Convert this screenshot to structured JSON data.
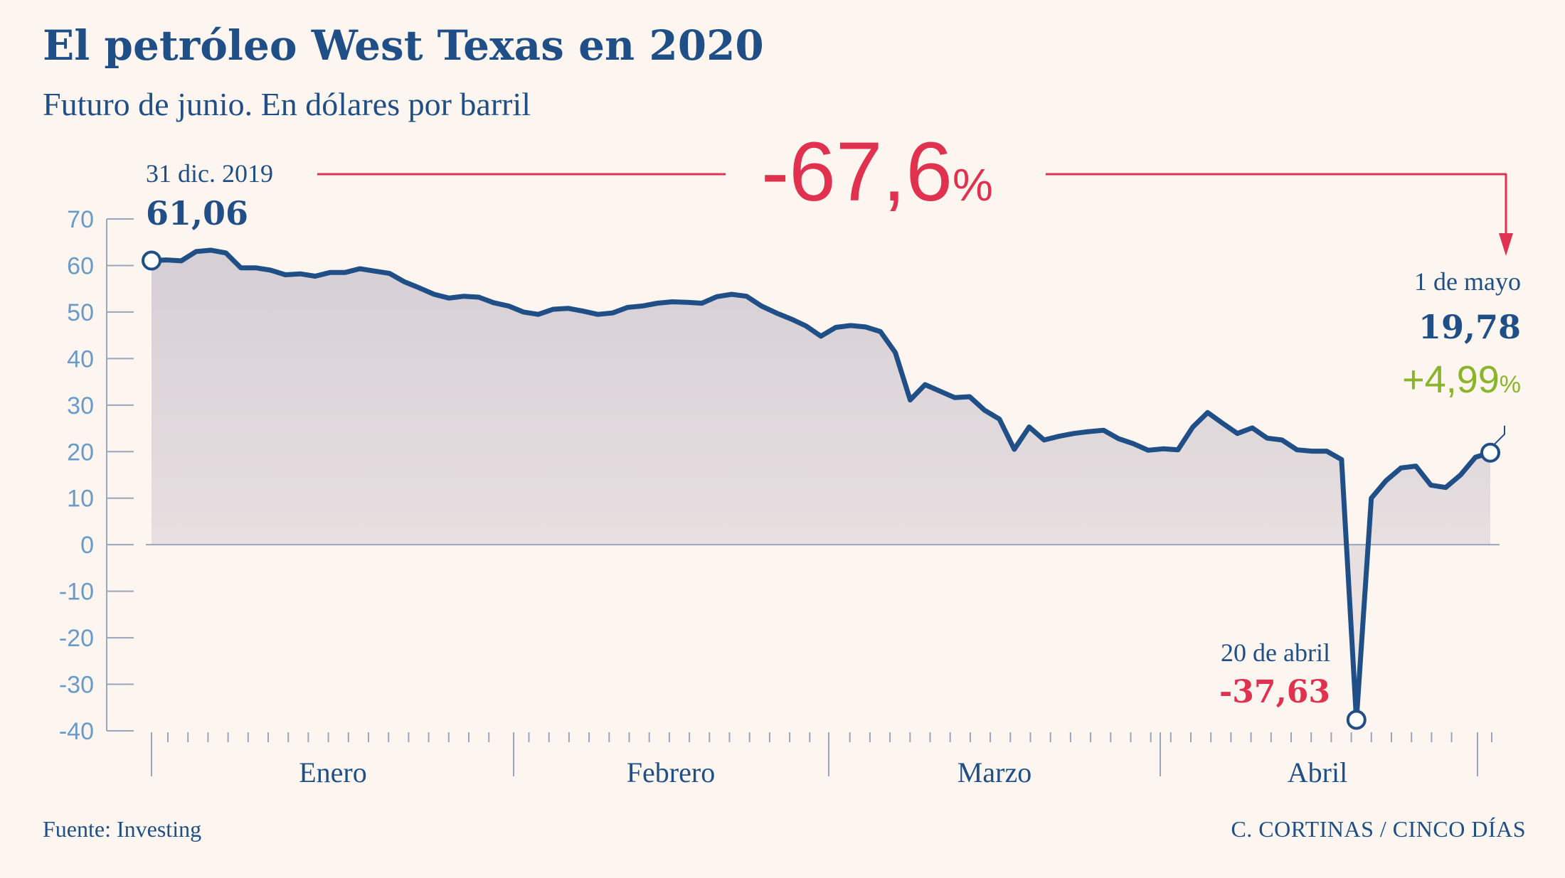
{
  "title": "El petróleo West Texas en 2020",
  "subtitle": "Futuro de junio. En dólares por barril",
  "source": "Fuente: Investing",
  "credit": "C. CORTINAS / CINCO DÍAS",
  "colors": {
    "line": "#1f4f86",
    "red": "#e0324f",
    "green": "#8ab42a",
    "axis": "#6a9ac8",
    "background": "#fdf5ef"
  },
  "annotations": {
    "start_date": "31 dic. 2019",
    "start_value": "61,06",
    "total_change": "-67,6",
    "total_change_unit": "%",
    "min_date": "20 de abril",
    "min_value": "-37,63",
    "end_date": "1 de mayo",
    "end_value": "19,78",
    "end_change": "+4,99",
    "end_change_unit": "%"
  },
  "chart_data": {
    "type": "area",
    "ylim": [
      -40,
      70
    ],
    "yticks": [
      "70",
      "60",
      "50",
      "40",
      "30",
      "20",
      "10",
      "0",
      "-10",
      "-20",
      "-30",
      "-40"
    ],
    "months": [
      "Enero",
      "Febrero",
      "Marzo",
      "Abril"
    ],
    "series": [
      {
        "values": [
          61.06,
          61.2,
          61.0,
          63.0,
          63.3,
          62.7,
          59.5,
          59.5,
          59.0,
          58.0,
          58.2,
          57.7,
          58.5,
          58.5,
          59.3,
          58.8,
          58.3,
          56.5,
          55.2,
          53.8,
          53.0,
          53.4,
          53.2,
          52.0,
          51.3,
          50.0,
          49.5,
          50.6,
          50.8,
          50.2,
          49.5,
          49.8,
          51.0,
          51.3,
          51.9,
          52.2,
          52.1,
          51.9,
          53.3,
          53.8,
          53.4,
          51.3,
          49.8,
          48.5,
          47.0,
          44.8,
          46.7,
          47.1,
          46.8,
          45.8,
          41.3,
          31.1,
          34.4,
          33.0,
          31.6,
          31.8,
          28.9,
          27.0,
          20.5,
          25.3,
          22.5,
          23.3,
          23.9,
          24.3,
          24.6,
          22.8,
          21.7,
          20.3,
          20.6,
          20.4,
          25.3,
          28.4,
          26.1,
          23.9,
          25.1,
          22.9,
          22.5,
          20.4,
          20.1,
          20.1,
          18.3,
          -37.63,
          10.0,
          13.8,
          16.5,
          16.9,
          12.8,
          12.3,
          15.0,
          18.8,
          19.78
        ]
      }
    ]
  }
}
